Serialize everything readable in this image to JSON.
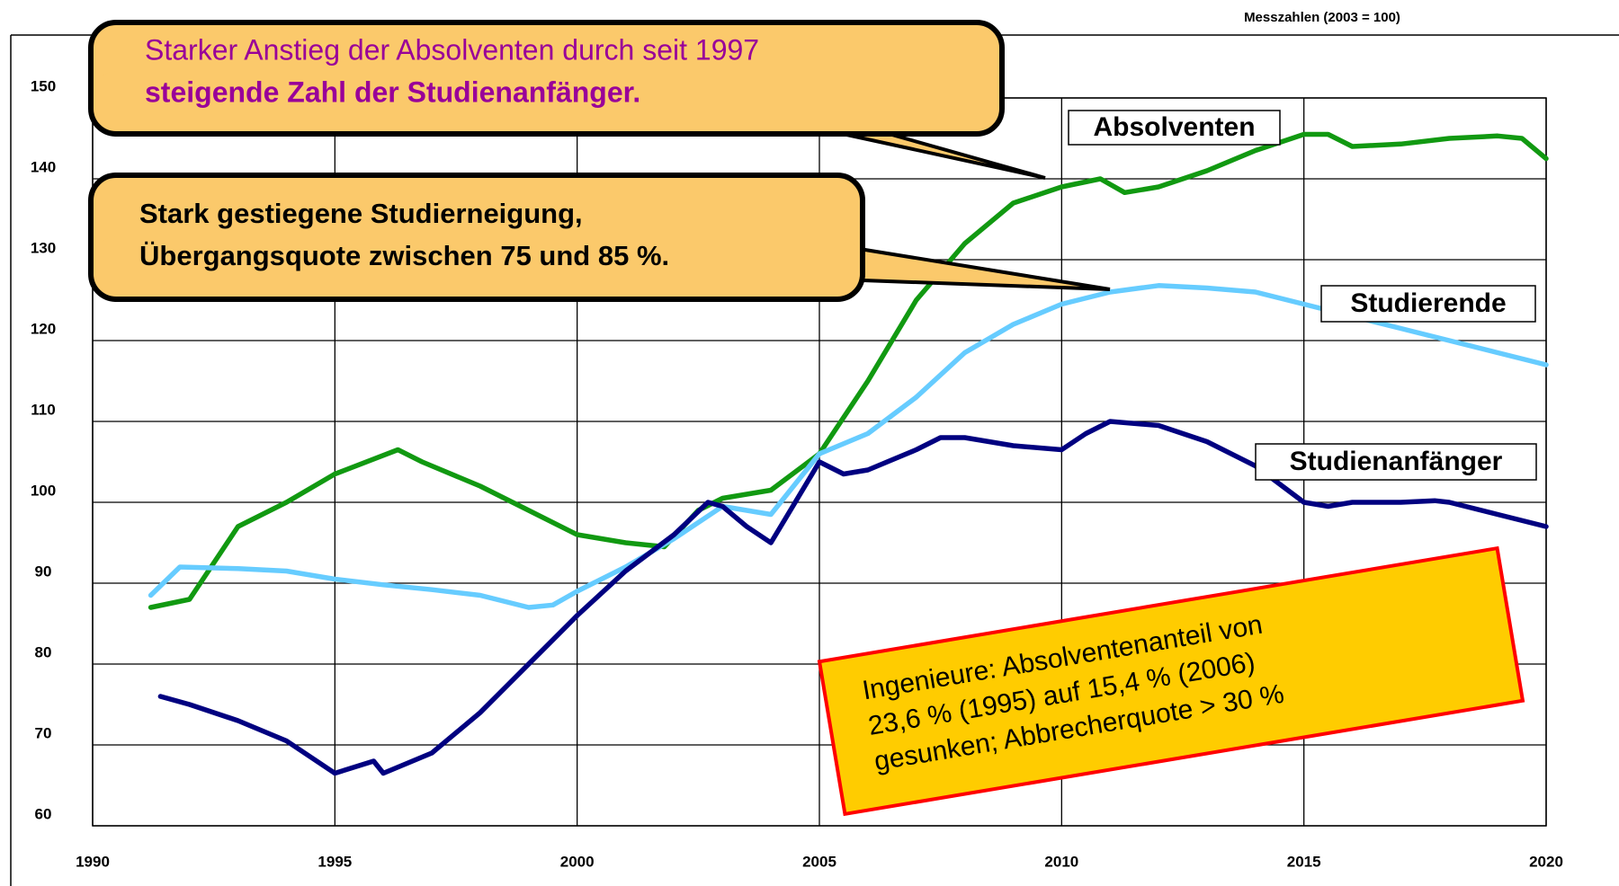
{
  "chart_data": {
    "type": "line",
    "title": "Messzahlen (2003 = 100)",
    "xlim": [
      1990,
      2020
    ],
    "xticks": [
      1990,
      1995,
      2000,
      2005,
      2010,
      2015,
      2020
    ],
    "ylim": [
      60,
      150
    ],
    "yticks": [
      60,
      70,
      80,
      90,
      100,
      110,
      120,
      130,
      140,
      150
    ],
    "grid": true,
    "series": [
      {
        "name": "Absolventen",
        "color": "#119911",
        "x": [
          1991.2,
          1992,
          1993,
          1994,
          1995,
          1996.3,
          1996.8,
          1998,
          1999,
          2000,
          2001,
          2001.8,
          2002.5,
          2003,
          2004,
          2005,
          2006,
          2007,
          2008,
          2009,
          2010,
          2010.8,
          2011.3,
          2012,
          2013,
          2014,
          2015,
          2015.5,
          2016,
          2017,
          2018,
          2019,
          2019.5,
          2020
        ],
        "values": [
          87,
          88,
          97,
          100,
          103.5,
          106.5,
          105,
          102,
          99,
          96,
          95,
          94.5,
          99,
          100.5,
          101.5,
          106,
          115,
          125,
          132,
          137,
          139,
          140,
          138.3,
          139,
          141,
          143.5,
          145.5,
          145.5,
          144,
          144.3,
          145,
          145.3,
          145,
          142.5
        ]
      },
      {
        "name": "Studierende",
        "color": "#66ccff",
        "x": [
          1991.2,
          1991.8,
          1993,
          1994,
          1995,
          1996,
          1997,
          1998,
          1999,
          1999.5,
          2000,
          2001,
          2002,
          2003,
          2003.5,
          2004,
          2005,
          2006,
          2007,
          2008,
          2009,
          2010,
          2011,
          2012,
          2013,
          2014,
          2015,
          2016,
          2017,
          2018,
          2019,
          2020
        ],
        "values": [
          88.5,
          92,
          91.8,
          91.5,
          90.5,
          89.8,
          89.2,
          88.5,
          87,
          87.3,
          89,
          92,
          95.5,
          99.5,
          99,
          98.5,
          106,
          108.5,
          113,
          118.5,
          122,
          124.5,
          126,
          126.8,
          126.5,
          126,
          124.5,
          123,
          121.5,
          120,
          118.5,
          117
        ]
      },
      {
        "name": "Studienanfänger",
        "color": "#000080",
        "x": [
          1991.4,
          1992,
          1993,
          1994,
          1995,
          1995.8,
          1996,
          1997,
          1998,
          1999,
          2000,
          2001,
          2002,
          2002.7,
          2003,
          2003.5,
          2004,
          2004.5,
          2005,
          2005.5,
          2006,
          2007,
          2007.5,
          2008,
          2009,
          2010,
          2010.5,
          2011,
          2012,
          2013,
          2014,
          2015,
          2015.5,
          2016,
          2017,
          2017.7,
          2018,
          2019,
          2020
        ],
        "values": [
          76,
          75,
          73,
          70.5,
          66.5,
          68,
          66.5,
          69,
          74,
          80,
          86,
          91.5,
          96,
          100,
          99.5,
          97,
          95,
          100,
          105,
          103.5,
          104,
          106.5,
          108,
          108,
          107,
          106.5,
          108.5,
          110,
          109.5,
          107.5,
          104.5,
          100,
          99.5,
          100,
          100,
          100.2,
          100,
          98.5,
          97
        ]
      }
    ],
    "annotations": [
      {
        "lines": [
          "Starker Anstieg der Absolventen durch seit 1997",
          "steigende Zahl der Studienanfänger."
        ]
      },
      {
        "lines": [
          "Stark gestiegene Studierneigung,",
          "Übergangsquote zwischen 75 und 85 %."
        ]
      },
      {
        "lines": [
          "Ingenieure: Absolventenanteil von",
          "23,6 % (1995) auf 15,4 % (2006)",
          "gesunken; Abbrecherquote > 30 %"
        ]
      }
    ]
  }
}
